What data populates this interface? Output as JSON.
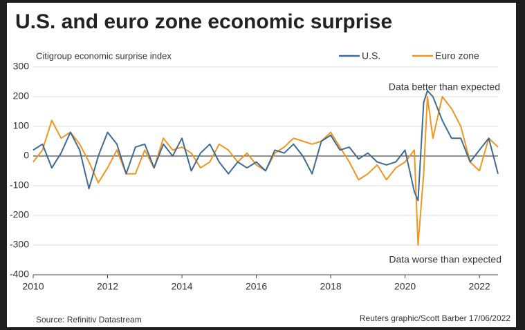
{
  "chart_data": {
    "type": "line",
    "title": "U.S. and euro zone economic surprise",
    "subtitle": "Citigroup economic surprise index",
    "annotations": [
      "Data better than expected",
      "Data worse than expected"
    ],
    "source": "Source: Refinitiv Datastream",
    "credit": "Reuters graphic/Scott Barber 17/06/2022",
    "x": [
      2010,
      2010.25,
      2010.5,
      2010.75,
      2011,
      2011.25,
      2011.5,
      2011.75,
      2012,
      2012.25,
      2012.5,
      2012.75,
      2013,
      2013.25,
      2013.5,
      2013.75,
      2014,
      2014.25,
      2014.5,
      2014.75,
      2015,
      2015.25,
      2015.5,
      2015.75,
      2016,
      2016.25,
      2016.5,
      2016.75,
      2017,
      2017.25,
      2017.5,
      2017.75,
      2018,
      2018.25,
      2018.5,
      2018.75,
      2019,
      2019.25,
      2019.5,
      2019.75,
      2020,
      2020.25,
      2020.35,
      2020.5,
      2020.6,
      2020.75,
      2021,
      2021.25,
      2021.5,
      2021.75,
      2022,
      2022.25,
      2022.5
    ],
    "series": [
      {
        "name": "U.S.",
        "color": "#3e6a94",
        "values": [
          20,
          40,
          -40,
          10,
          80,
          20,
          -110,
          0,
          80,
          40,
          -60,
          30,
          40,
          -40,
          40,
          0,
          60,
          -50,
          10,
          40,
          -20,
          -60,
          -20,
          -40,
          -20,
          -50,
          20,
          10,
          40,
          0,
          -60,
          50,
          70,
          20,
          30,
          -10,
          10,
          -20,
          -30,
          -20,
          20,
          -120,
          -150,
          180,
          220,
          200,
          120,
          60,
          60,
          -20,
          20,
          60,
          -60
        ]
      },
      {
        "name": "Euro zone",
        "color": "#f0961e",
        "values": [
          -20,
          20,
          120,
          60,
          80,
          40,
          -20,
          -90,
          -40,
          20,
          -60,
          -60,
          20,
          -40,
          60,
          20,
          30,
          10,
          -40,
          -20,
          40,
          20,
          -20,
          10,
          -30,
          -50,
          10,
          30,
          60,
          50,
          40,
          50,
          80,
          30,
          -20,
          -80,
          -60,
          -30,
          -80,
          -40,
          -20,
          20,
          -300,
          -60,
          200,
          60,
          200,
          160,
          100,
          -20,
          -50,
          60,
          30
        ]
      }
    ],
    "xlim": [
      2010,
      2022.5
    ],
    "xticks": [
      2010,
      2012,
      2014,
      2016,
      2018,
      2020,
      2022
    ],
    "ylim": [
      -400,
      300
    ],
    "yticks": [
      -400,
      -300,
      -200,
      -100,
      0,
      100,
      200,
      300
    ],
    "grid": true
  }
}
